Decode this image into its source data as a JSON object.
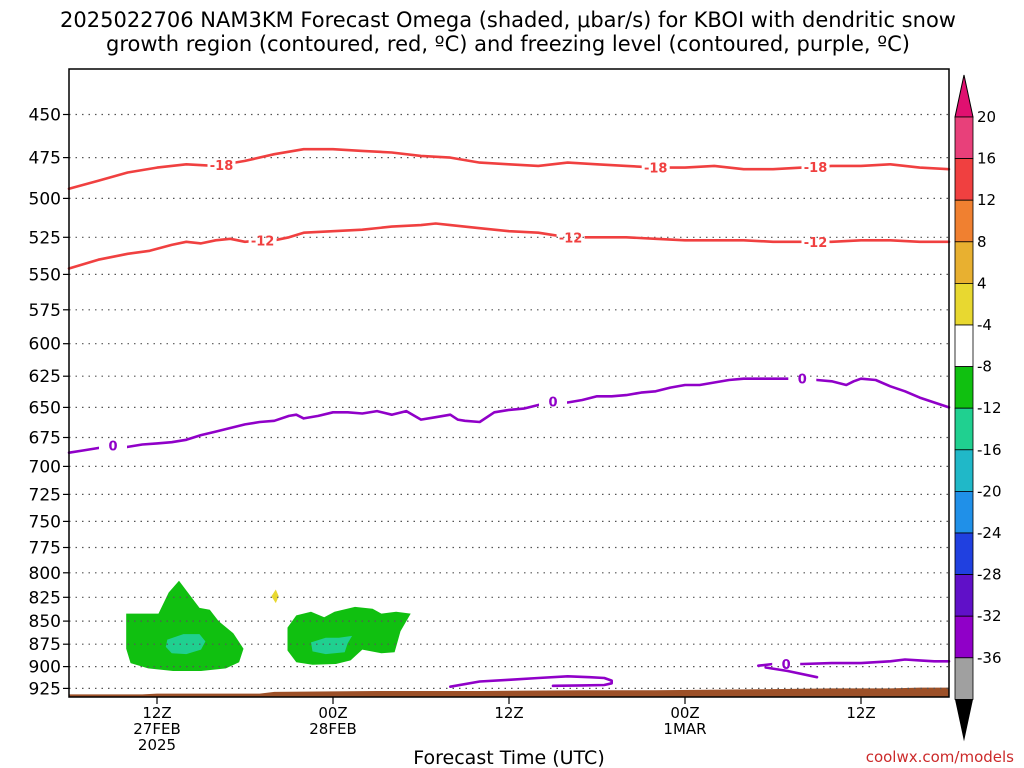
{
  "title_line1": "2025022706 NAM3KM Forecast Omega (shaded, μbar/s) for KBOI with dendritic snow",
  "title_line2": "growth region (contoured, red, ºC) and freezing level (contoured, purple, ºC)",
  "credit": "coolwx.com/models",
  "colors": {
    "temp_contour": "#f04040",
    "freezing_contour": "#9000c8",
    "terrain": "#9c5028",
    "grid": "#555555",
    "credit": "#cc2a2a"
  },
  "chart_data": {
    "type": "heatmap",
    "title": "2025022706 NAM3KM Forecast Omega (shaded, μbar/s) for KBOI with dendritic snow growth region (contoured, red, ºC) and freezing level (contoured, purple, ºC)",
    "xlabel": "Forecast Time (UTC)",
    "ylabel": "",
    "x_unit": "forecast hour",
    "xlim": [
      0,
      60
    ],
    "y_unit": "hPa",
    "ylim": [
      935,
      425
    ],
    "y_scale": "log-pressure",
    "y_ticks": [
      450,
      475,
      500,
      525,
      550,
      575,
      600,
      625,
      650,
      675,
      700,
      725,
      750,
      775,
      800,
      825,
      850,
      875,
      900,
      925
    ],
    "grid": true,
    "x_ticks": [
      {
        "hour": 6,
        "lines": [
          "12Z",
          "27FEB",
          "2025"
        ]
      },
      {
        "hour": 18,
        "lines": [
          "00Z",
          "28FEB"
        ]
      },
      {
        "hour": 30,
        "lines": [
          "12Z"
        ]
      },
      {
        "hour": 42,
        "lines": [
          "00Z",
          "1MAR"
        ]
      },
      {
        "hour": 54,
        "lines": [
          "12Z"
        ]
      }
    ],
    "colorbar": {
      "levels": [
        20,
        16,
        12,
        8,
        4,
        -4,
        -8,
        -12,
        -16,
        -20,
        -24,
        -28,
        -32,
        -36
      ],
      "colors": [
        "#e8407a",
        "#f04040",
        "#f08030",
        "#e8b030",
        "#e8d830",
        "#ffffff",
        "#10c010",
        "#20d090",
        "#20b8c8",
        "#2090e8",
        "#2040e0",
        "#6010c8",
        "#9000c8",
        "#a0a0a0"
      ],
      "top_arrow_color": "#e01070",
      "bottom_arrow_color": "#000000"
    },
    "contours": [
      {
        "label": "-18",
        "color": "#f04040",
        "label_at": [
          10.4,
          40.0,
          50.9
        ],
        "points": [
          [
            0,
            494
          ],
          [
            2,
            489
          ],
          [
            4,
            484
          ],
          [
            6,
            481
          ],
          [
            8,
            479
          ],
          [
            10,
            480
          ],
          [
            12,
            477
          ],
          [
            14,
            473
          ],
          [
            16,
            470
          ],
          [
            18,
            470
          ],
          [
            20,
            471
          ],
          [
            22,
            472
          ],
          [
            24,
            474
          ],
          [
            26,
            475
          ],
          [
            28,
            478
          ],
          [
            30,
            479
          ],
          [
            32,
            480
          ],
          [
            34,
            478
          ],
          [
            36,
            479
          ],
          [
            38,
            480
          ],
          [
            40,
            481
          ],
          [
            42,
            481
          ],
          [
            44,
            480
          ],
          [
            46,
            482
          ],
          [
            48,
            482
          ],
          [
            50,
            481
          ],
          [
            52,
            480
          ],
          [
            54,
            480
          ],
          [
            56,
            479
          ],
          [
            58,
            481
          ],
          [
            60,
            482
          ]
        ]
      },
      {
        "label": "-12",
        "color": "#f04040",
        "label_at": [
          13.2,
          34.2,
          50.9
        ],
        "points": [
          [
            0,
            546
          ],
          [
            2,
            540
          ],
          [
            4,
            536
          ],
          [
            5.5,
            534
          ],
          [
            7,
            530
          ],
          [
            8,
            528
          ],
          [
            9,
            529
          ],
          [
            10,
            527
          ],
          [
            11,
            526
          ],
          [
            12,
            528
          ],
          [
            13,
            527
          ],
          [
            14,
            527
          ],
          [
            15,
            525
          ],
          [
            16,
            522
          ],
          [
            18,
            521
          ],
          [
            20,
            520
          ],
          [
            22,
            518
          ],
          [
            24,
            517
          ],
          [
            25,
            516
          ],
          [
            26,
            517
          ],
          [
            28,
            519
          ],
          [
            30,
            521
          ],
          [
            32,
            522
          ],
          [
            34,
            525
          ],
          [
            36,
            525
          ],
          [
            38,
            525
          ],
          [
            40,
            526
          ],
          [
            42,
            527
          ],
          [
            44,
            527
          ],
          [
            46,
            527
          ],
          [
            48,
            528
          ],
          [
            50,
            528
          ],
          [
            52,
            528
          ],
          [
            54,
            527
          ],
          [
            56,
            527
          ],
          [
            58,
            528
          ],
          [
            60,
            528
          ]
        ]
      },
      {
        "label": "0",
        "color": "#9000c8",
        "label_at": [
          3,
          33,
          50
        ],
        "points": [
          [
            0,
            688
          ],
          [
            1,
            686
          ],
          [
            2,
            684
          ],
          [
            3,
            682
          ],
          [
            4,
            683
          ],
          [
            5,
            681
          ],
          [
            6,
            680
          ],
          [
            7,
            679
          ],
          [
            8,
            677
          ],
          [
            9,
            673
          ],
          [
            10,
            670
          ],
          [
            11,
            667
          ],
          [
            12,
            664
          ],
          [
            13,
            662
          ],
          [
            14,
            661
          ],
          [
            15,
            657
          ],
          [
            15.5,
            656
          ],
          [
            16,
            659
          ],
          [
            17,
            657
          ],
          [
            18,
            654
          ],
          [
            19,
            654
          ],
          [
            20,
            655
          ],
          [
            21,
            653
          ],
          [
            22,
            656
          ],
          [
            23,
            653
          ],
          [
            24,
            660
          ],
          [
            25,
            658
          ],
          [
            26,
            656
          ],
          [
            26.5,
            660
          ],
          [
            27,
            661
          ],
          [
            28,
            662
          ],
          [
            29,
            654
          ],
          [
            30,
            652
          ],
          [
            31,
            651
          ],
          [
            32,
            648
          ],
          [
            33,
            645
          ],
          [
            34,
            646
          ],
          [
            35,
            644
          ],
          [
            36,
            641
          ],
          [
            37,
            641
          ],
          [
            38,
            640
          ],
          [
            39,
            638
          ],
          [
            40,
            637
          ],
          [
            41,
            634
          ],
          [
            42,
            632
          ],
          [
            43,
            632
          ],
          [
            44,
            630
          ],
          [
            45,
            628
          ],
          [
            46,
            627
          ],
          [
            47,
            627
          ],
          [
            48,
            627
          ],
          [
            49,
            627
          ],
          [
            50,
            627
          ],
          [
            51,
            628
          ],
          [
            52,
            629
          ],
          [
            53,
            632
          ],
          [
            53.5,
            629
          ],
          [
            54,
            627
          ],
          [
            55,
            628
          ],
          [
            56,
            633
          ],
          [
            57,
            637
          ],
          [
            58,
            642
          ],
          [
            59,
            646
          ],
          [
            60,
            650
          ]
        ]
      },
      {
        "label": "",
        "color": "#9000c8",
        "label_at": [],
        "points": [
          [
            26,
            923
          ],
          [
            28,
            917
          ],
          [
            30,
            915
          ],
          [
            32,
            913
          ],
          [
            34,
            911
          ],
          [
            35.5,
            912
          ],
          [
            36.5,
            913
          ],
          [
            37,
            916
          ],
          [
            37,
            919
          ],
          [
            36.5,
            921
          ],
          [
            35,
            921.5
          ],
          [
            33,
            922
          ]
        ]
      },
      {
        "label": "0",
        "color": "#9000c8",
        "label_at": [
          48.9
        ],
        "points": [
          [
            47,
            899
          ],
          [
            48,
            897
          ],
          [
            50,
            897
          ],
          [
            52,
            896
          ],
          [
            54,
            896
          ],
          [
            56,
            894
          ],
          [
            57,
            892
          ],
          [
            58,
            893
          ],
          [
            59,
            894
          ],
          [
            60,
            894
          ]
        ]
      },
      {
        "label": "",
        "color": "#9000c8",
        "label_at": [],
        "points": [
          [
            47.5,
            901
          ],
          [
            49,
            905
          ],
          [
            51,
            912
          ]
        ]
      }
    ],
    "shaded": [
      {
        "name": "omega -4 to -8",
        "color": "#10c010",
        "points": [
          [
            3.9,
            842
          ],
          [
            6.1,
            842
          ],
          [
            6.8,
            820
          ],
          [
            7.5,
            808
          ],
          [
            8.4,
            826
          ],
          [
            8.9,
            836
          ],
          [
            9.6,
            838
          ],
          [
            10.2,
            850
          ],
          [
            11.2,
            863
          ],
          [
            11.9,
            880
          ],
          [
            11.6,
            895
          ],
          [
            10.7,
            902
          ],
          [
            9.0,
            905
          ],
          [
            7.1,
            905
          ],
          [
            5.4,
            902
          ],
          [
            4.2,
            896
          ],
          [
            3.9,
            880
          ]
        ]
      },
      {
        "name": "omega -4 to -8",
        "color": "#10c010",
        "points": [
          [
            14.9,
            857
          ],
          [
            15.5,
            844
          ],
          [
            16.5,
            840
          ],
          [
            17.4,
            846
          ],
          [
            18.1,
            840
          ],
          [
            19.5,
            835
          ],
          [
            20.7,
            837
          ],
          [
            21.3,
            842
          ],
          [
            22.3,
            840
          ],
          [
            23.3,
            842
          ],
          [
            22.6,
            861
          ],
          [
            22.2,
            884
          ],
          [
            21.3,
            885
          ],
          [
            20.0,
            881
          ],
          [
            19.2,
            893
          ],
          [
            18.2,
            897
          ],
          [
            16.6,
            898
          ],
          [
            15.5,
            895
          ],
          [
            14.9,
            882
          ]
        ]
      },
      {
        "name": "omega -8 to -12",
        "color": "#20d090",
        "points": [
          [
            6.7,
            870
          ],
          [
            7.8,
            864
          ],
          [
            8.9,
            864
          ],
          [
            9.3,
            872
          ],
          [
            9.0,
            881
          ],
          [
            8.0,
            886
          ],
          [
            7.0,
            885
          ],
          [
            6.6,
            878
          ]
        ]
      },
      {
        "name": "omega -8 to -12",
        "color": "#20d090",
        "points": [
          [
            16.5,
            873
          ],
          [
            17.5,
            868
          ],
          [
            18.4,
            868
          ],
          [
            19.3,
            866
          ],
          [
            19.0,
            874
          ],
          [
            18.8,
            884
          ],
          [
            17.5,
            886
          ],
          [
            16.6,
            883
          ]
        ]
      },
      {
        "name": "omega 4 to 8",
        "color": "#e8d830",
        "points": [
          [
            13.8,
            824
          ],
          [
            14.1,
            817
          ],
          [
            14.3,
            824
          ],
          [
            14.1,
            831
          ]
        ]
      }
    ],
    "terrain_surface": [
      [
        0,
        932
      ],
      [
        5,
        932
      ],
      [
        6,
        931
      ],
      [
        13,
        931
      ],
      [
        14,
        929
      ],
      [
        21,
        928
      ],
      [
        28,
        928
      ],
      [
        35,
        927
      ],
      [
        40,
        927
      ],
      [
        47,
        926
      ],
      [
        52,
        925
      ],
      [
        56,
        925
      ],
      [
        58,
        924
      ],
      [
        60,
        924
      ]
    ]
  }
}
